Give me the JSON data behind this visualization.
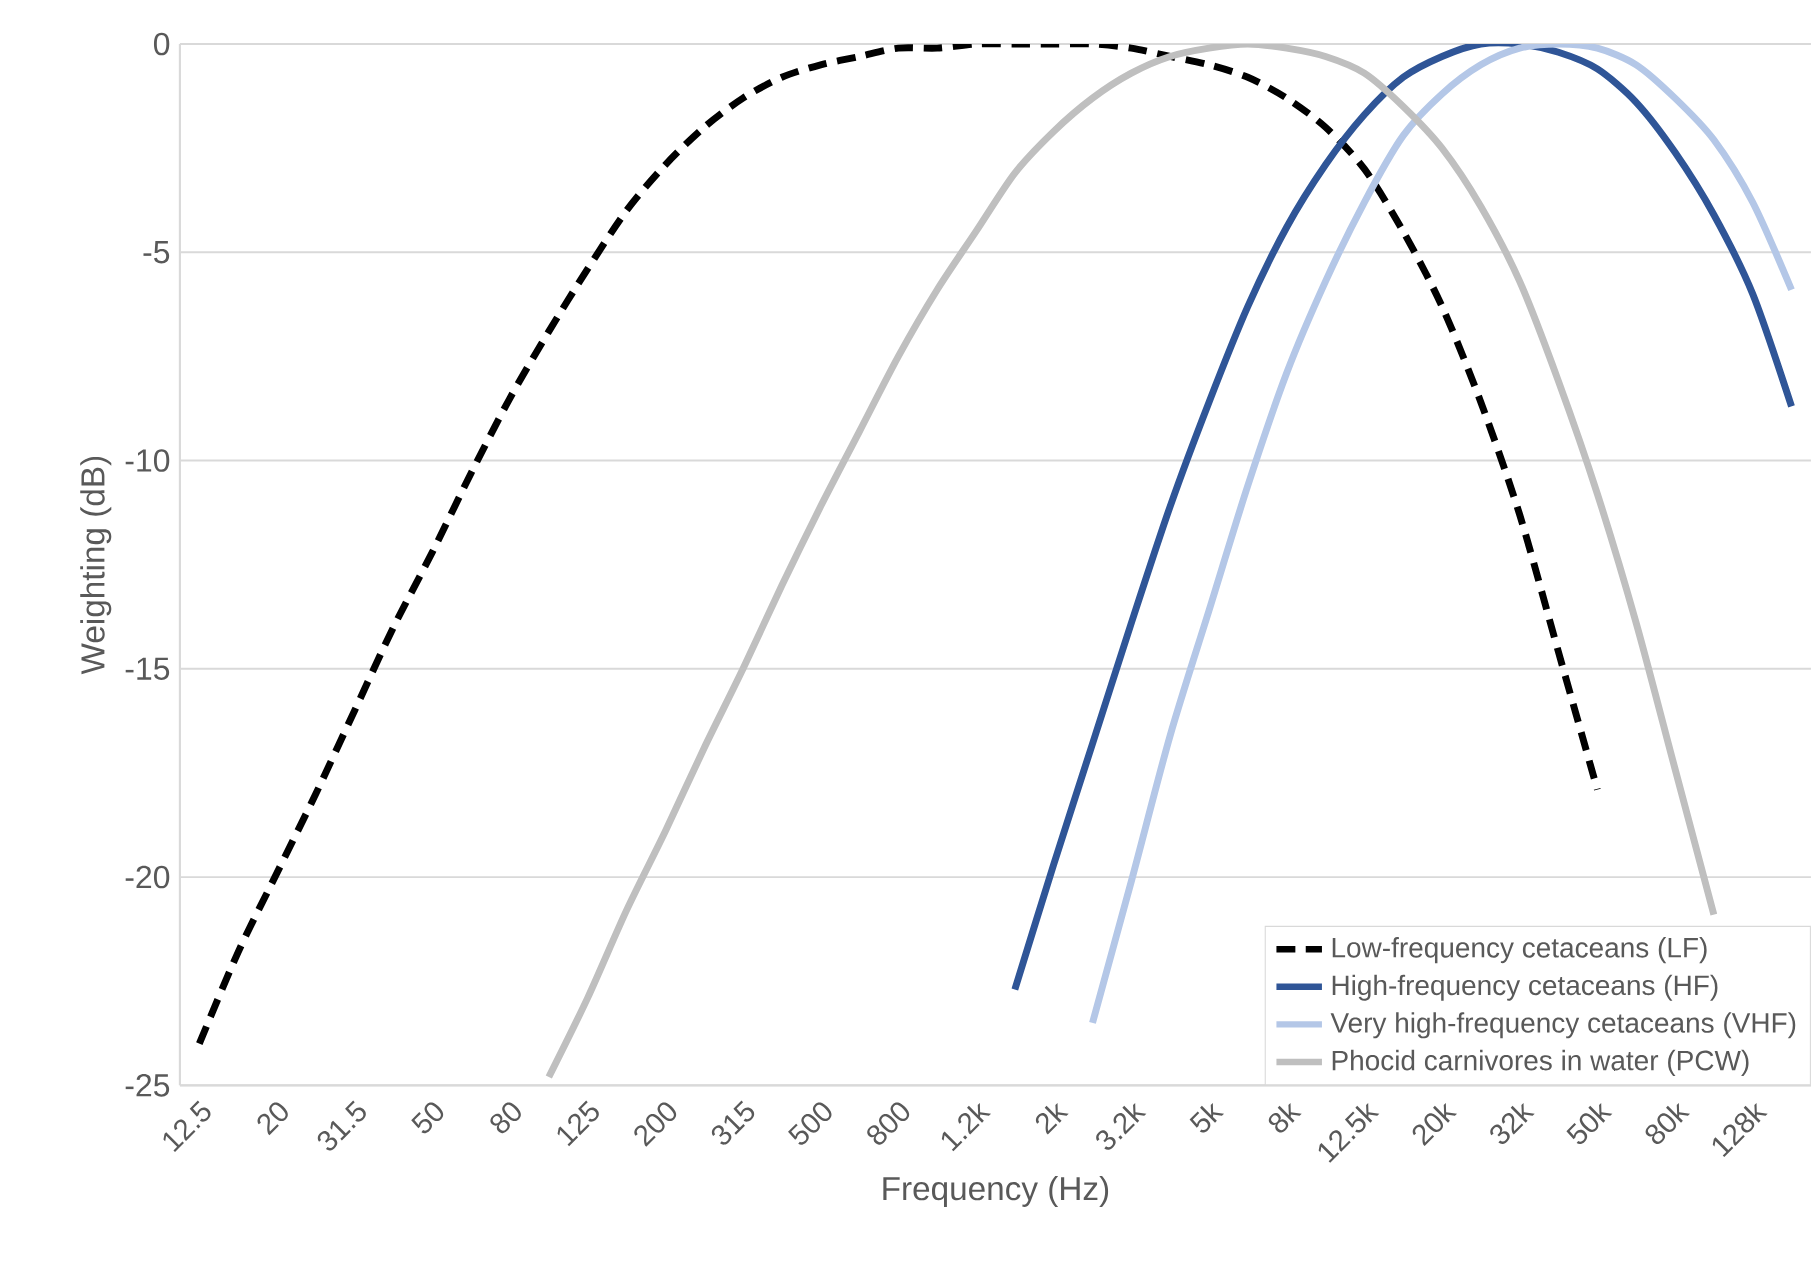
{
  "chart_data": {
    "type": "line",
    "xlabel": "Frequency (Hz)",
    "ylabel": "Weighting (dB)",
    "categories": [
      "12.5",
      null,
      "20",
      null,
      "31.5",
      null,
      "50",
      null,
      "80",
      null,
      "125",
      null,
      "200",
      null,
      "315",
      null,
      "500",
      null,
      "800",
      null,
      "1.2k",
      null,
      "2k",
      null,
      "3.2k",
      null,
      "5k",
      null,
      "8k",
      null,
      "12.5k",
      null,
      "20k",
      null,
      "32k",
      null,
      "50k",
      null,
      "80k",
      null,
      "128k",
      null
    ],
    "series": [
      {
        "name": "Low-frequency cetaceans (LF)",
        "color": "#000000",
        "line_style": "dashed",
        "values": [
          -24.0,
          -21.8,
          -19.9,
          -18.0,
          -16.0,
          -14.0,
          -12.2,
          -10.3,
          -8.5,
          -6.9,
          -5.4,
          -4.0,
          -2.9,
          -2.0,
          -1.3,
          -0.8,
          -0.5,
          -0.3,
          -0.1,
          -0.1,
          0.0,
          0.0,
          0.0,
          0.0,
          -0.1,
          -0.3,
          -0.5,
          -0.8,
          -1.3,
          -2.0,
          -3.0,
          -4.5,
          -6.3,
          -8.6,
          -11.3,
          -14.6,
          -17.9,
          null,
          null,
          null,
          null,
          null
        ]
      },
      {
        "name": "High-frequency cetaceans (HF)",
        "color": "#2f5597",
        "line_style": "solid",
        "values": [
          null,
          null,
          null,
          null,
          null,
          null,
          null,
          null,
          null,
          null,
          null,
          null,
          null,
          null,
          null,
          null,
          null,
          null,
          null,
          null,
          null,
          -22.7,
          -19.7,
          -16.8,
          -13.9,
          -11.1,
          -8.6,
          -6.3,
          -4.4,
          -2.9,
          -1.7,
          -0.8,
          -0.3,
          0.0,
          0.0,
          -0.2,
          -0.6,
          -1.4,
          -2.6,
          -4.1,
          -6.0,
          -8.7
        ]
      },
      {
        "name": "Very high-frequency cetaceans (VHF)",
        "color": "#b4c7e7",
        "line_style": "solid",
        "values": [
          null,
          null,
          null,
          null,
          null,
          null,
          null,
          null,
          null,
          null,
          null,
          null,
          null,
          null,
          null,
          null,
          null,
          null,
          null,
          null,
          null,
          null,
          null,
          -23.5,
          -20.1,
          -16.6,
          -13.6,
          -10.6,
          -7.9,
          -5.7,
          -3.8,
          -2.2,
          -1.2,
          -0.5,
          -0.1,
          0.0,
          -0.1,
          -0.5,
          -1.3,
          -2.3,
          -3.8,
          -5.9
        ]
      },
      {
        "name": "Phocid carnivores in water (PCW)",
        "color": "#bfbfbf",
        "line_style": "solid",
        "values": [
          null,
          null,
          null,
          null,
          null,
          null,
          null,
          null,
          null,
          -24.8,
          -22.9,
          -20.8,
          -18.9,
          -16.9,
          -15.0,
          -13.0,
          -11.1,
          -9.3,
          -7.5,
          -5.9,
          -4.5,
          -3.1,
          -2.1,
          -1.3,
          -0.7,
          -0.3,
          -0.1,
          0.0,
          -0.1,
          -0.3,
          -0.7,
          -1.5,
          -2.5,
          -3.9,
          -5.7,
          -8.1,
          -10.8,
          -13.9,
          -17.4,
          -20.9,
          null,
          null
        ]
      }
    ],
    "ylim": [
      -25,
      0
    ],
    "yticks": [
      0,
      -5,
      -10,
      -15,
      -20,
      -25
    ],
    "grid": "y",
    "legend": "bottom right"
  }
}
